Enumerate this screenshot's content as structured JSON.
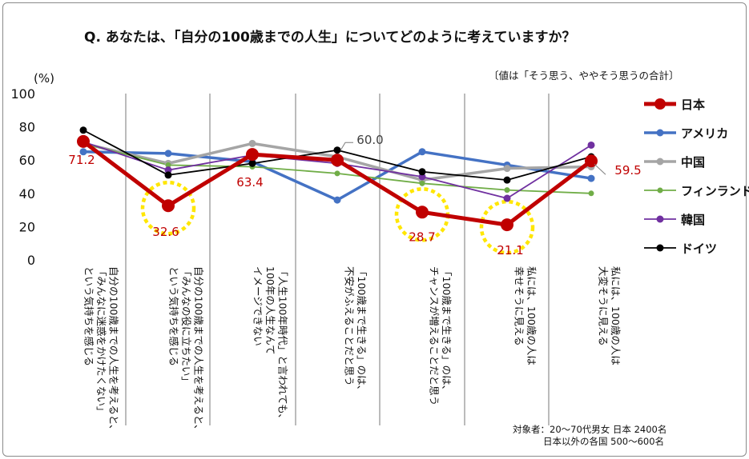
{
  "chart_data": {
    "type": "line",
    "title": "Q. あなたは、「自分の100歳までの人生」についてどのように考えていますか？",
    "note": "〔値は「そう思う、ややそう思うの合計〕",
    "ylabel": "(%)",
    "ylim": [
      0,
      100
    ],
    "yticks": [
      0,
      20,
      40,
      60,
      80,
      100
    ],
    "categories": [
      [
        "自分の100歳までの人生を考えると、",
        "「みんなに迷惑をかけたくない」",
        "という気持ちを感じる"
      ],
      [
        "自分の100歳までの人生を考えると、",
        "「みんなの役に立ちたい」",
        "という気持ちを感じる"
      ],
      [
        "「人生100年時代」と言われても、",
        "100年の人生なんて",
        "イメージできない"
      ],
      [
        "「100歳まで生きる」のは、",
        "不安がふえることだと思う"
      ],
      [
        "「100歳まで生きる」のは、",
        "チャンスが増えることだと思う"
      ],
      [
        "私には、100歳の人は",
        "幸せそうに見える"
      ],
      [
        "私には、100歳の人は",
        "大変そうに見える"
      ]
    ],
    "series": [
      {
        "name": "日本",
        "color": "#c00000",
        "values": [
          71.2,
          32.6,
          63.4,
          60.0,
          28.7,
          21.1,
          59.5
        ]
      },
      {
        "name": "アメリカ",
        "color": "#4472c4",
        "values": [
          65,
          64,
          59,
          36,
          65,
          57,
          49
        ]
      },
      {
        "name": "中国",
        "color": "#a5a5a5",
        "values": [
          70,
          58,
          70,
          62,
          48,
          55,
          56
        ]
      },
      {
        "name": "フィンランド",
        "color": "#70ad47",
        "values": [
          70,
          57,
          56,
          52,
          46,
          42,
          40
        ]
      },
      {
        "name": "韓国",
        "color": "#7030a0",
        "values": [
          71,
          54,
          63,
          58,
          50,
          37,
          69
        ]
      },
      {
        "name": "ドイツ",
        "color": "#000000",
        "values": [
          78,
          51,
          58,
          66,
          53,
          48,
          62
        ]
      }
    ],
    "data_labels": [
      {
        "series": "日本",
        "index": 0,
        "text": "71.2",
        "color": "#c00000"
      },
      {
        "series": "日本",
        "index": 1,
        "text": "32.6",
        "color": "#c00000"
      },
      {
        "series": "日本",
        "index": 2,
        "text": "63.4",
        "color": "#c00000"
      },
      {
        "series": "日本",
        "index": 3,
        "text": "60.0",
        "color": "#404040"
      },
      {
        "series": "日本",
        "index": 4,
        "text": "28.7",
        "color": "#c00000"
      },
      {
        "series": "日本",
        "index": 5,
        "text": "21.1",
        "color": "#c00000"
      },
      {
        "series": "日本",
        "index": 6,
        "text": "59.5",
        "color": "#c00000"
      }
    ],
    "highlighted_points": [
      1,
      4,
      5
    ],
    "grid": false,
    "legend_position": "right"
  },
  "footnote": [
    "対象者：20～70代男女 日本 2400名",
    "日本以外の各国 500～600名"
  ]
}
